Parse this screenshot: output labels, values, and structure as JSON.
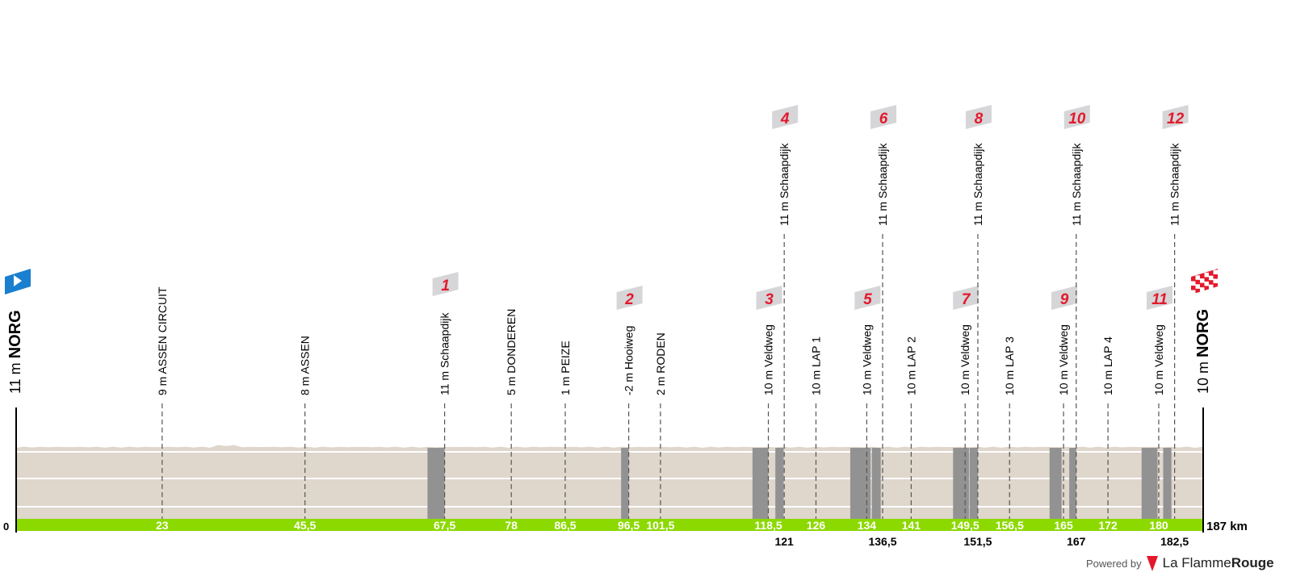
{
  "chart_data": {
    "type": "area",
    "title": "",
    "x_unit": "km",
    "xlim": [
      0,
      187
    ],
    "y_axis_label": "0",
    "distance_label": "187 km",
    "start": {
      "name": "NORG",
      "altitude": "11 m"
    },
    "finish": {
      "name": "NORG",
      "altitude": "10 m"
    },
    "colors": {
      "profile": "#dfd6cc",
      "road": "#8cd900",
      "cobbles": "#939293",
      "start_flag": "#1a7fcf",
      "sector_num": "#e3192b",
      "sector_flag": "#d6d5d8"
    },
    "markers": [
      {
        "km": 23,
        "label": "23",
        "name": "9 m ASSEN CIRCUIT",
        "high": false
      },
      {
        "km": 45.5,
        "label": "45,5",
        "name": "8 m ASSEN",
        "high": false
      },
      {
        "km": 67.5,
        "label": "67,5",
        "name": "11 m Schaapdijk",
        "high": false,
        "sector": "1"
      },
      {
        "km": 78,
        "label": "78",
        "name": "5 m DONDEREN",
        "high": false
      },
      {
        "km": 86.5,
        "label": "86,5",
        "name": "1 m PEIZE",
        "high": false
      },
      {
        "km": 96.5,
        "label": "96,5",
        "name": "-2 m Hooiweg",
        "high": false,
        "sector": "2"
      },
      {
        "km": 101.5,
        "label": "101,5",
        "name": "2 m RODEN",
        "high": false
      },
      {
        "km": 118.5,
        "label": "118,5",
        "name": "10 m Veldweg",
        "high": false,
        "sector": "3"
      },
      {
        "km": 121,
        "label": "121",
        "name": "11 m Schaapdijk",
        "high": true,
        "sector": "4"
      },
      {
        "km": 126,
        "label": "126",
        "name": "10 m LAP 1",
        "high": false
      },
      {
        "km": 134,
        "label": "134",
        "name": "10 m Veldweg",
        "high": false,
        "sector": "5"
      },
      {
        "km": 136.5,
        "label": "136,5",
        "name": "11 m Schaapdijk",
        "high": true,
        "sector": "6"
      },
      {
        "km": 141,
        "label": "141",
        "name": "10 m LAP 2",
        "high": false
      },
      {
        "km": 149.5,
        "label": "149,5",
        "name": "10 m Veldweg",
        "high": false,
        "sector": "7"
      },
      {
        "km": 151.5,
        "label": "151,5",
        "name": "11 m Schaapdijk",
        "high": true,
        "sector": "8"
      },
      {
        "km": 156.5,
        "label": "156,5",
        "name": "10 m LAP 3",
        "high": false
      },
      {
        "km": 165,
        "label": "165",
        "name": "10 m Veldweg",
        "high": false,
        "sector": "9"
      },
      {
        "km": 167,
        "label": "167",
        "name": "11 m Schaapdijk",
        "high": true,
        "sector": "10"
      },
      {
        "km": 172,
        "label": "172",
        "name": "10 m LAP 4",
        "high": false
      },
      {
        "km": 180,
        "label": "180",
        "name": "10 m Veldweg",
        "high": false,
        "sector": "11"
      },
      {
        "km": 182.5,
        "label": "182,5",
        "name": "11 m Schaapdijk",
        "high": true,
        "sector": "12"
      }
    ],
    "cobbled_sectors": [
      [
        64.8,
        67.5
      ],
      [
        95.3,
        96.5
      ],
      [
        116,
        118.5
      ],
      [
        119.6,
        120.9
      ],
      [
        131.4,
        134.6
      ],
      [
        134.8,
        136.2
      ],
      [
        147.6,
        150.1
      ],
      [
        150.2,
        151.5
      ],
      [
        162.8,
        164.7
      ],
      [
        165.9,
        167.0
      ],
      [
        177.3,
        179.8
      ],
      [
        180.7,
        182
      ]
    ]
  },
  "footer": {
    "powered_by": "Powered by",
    "brand_a": "La Flamme",
    "brand_b": "Rouge"
  }
}
